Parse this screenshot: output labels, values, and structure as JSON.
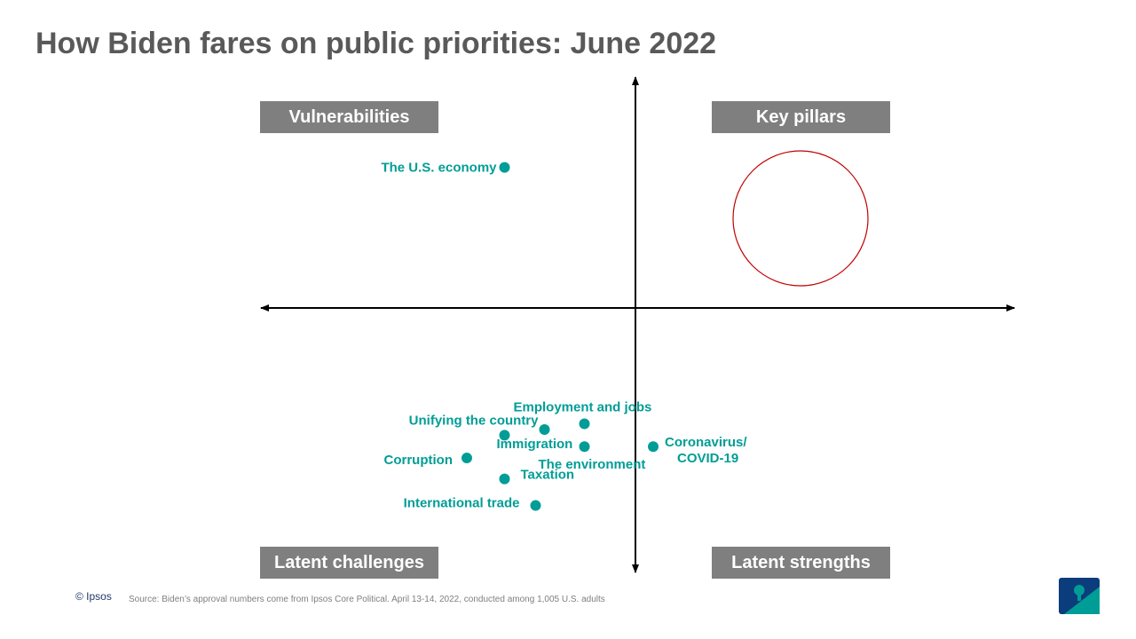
{
  "title": "How Biden fares on public priorities: June 2022",
  "quadrants": {
    "top_left": "Vulnerabilities",
    "top_right": "Key pillars",
    "bottom_left": "Latent challenges",
    "bottom_right": "Latent strengths"
  },
  "chart_data": {
    "type": "scatter",
    "title": "How Biden fares on public priorities: June 2022",
    "xlabel": "",
    "ylabel": "",
    "xlim": [
      -1,
      1
    ],
    "ylim": [
      -1,
      1
    ],
    "grid": false,
    "colors": {
      "point": "#009d96",
      "label": "#009d96",
      "axis": "#000000",
      "highlight_circle": "#c00000"
    },
    "points": [
      {
        "label": "The U.S. economy",
        "x": -0.59,
        "y": 0.74
      },
      {
        "label": "Employment and jobs",
        "x": -0.23,
        "y": -0.61
      },
      {
        "label": "Unifying the country",
        "x": -0.59,
        "y": -0.67
      },
      {
        "label": "Immigration",
        "x": -0.41,
        "y": -0.64
      },
      {
        "label": "The environment",
        "x": -0.23,
        "y": -0.73
      },
      {
        "label": "Coronavirus/\nCOVID-19",
        "x": 0.08,
        "y": -0.73
      },
      {
        "label": "Corruption",
        "x": -0.76,
        "y": -0.79
      },
      {
        "label": "Taxation",
        "x": -0.59,
        "y": -0.9
      },
      {
        "label": "International trade",
        "x": -0.45,
        "y": -1.04
      }
    ]
  },
  "footer": {
    "copyright": "© Ipsos",
    "source": "Source: Biden’s approval numbers come from Ipsos Core Political.  April 13-14, 2022, conducted among 1,005 U.S. adults"
  },
  "logo": {
    "text": "Ipsos",
    "color": "#009d96"
  }
}
